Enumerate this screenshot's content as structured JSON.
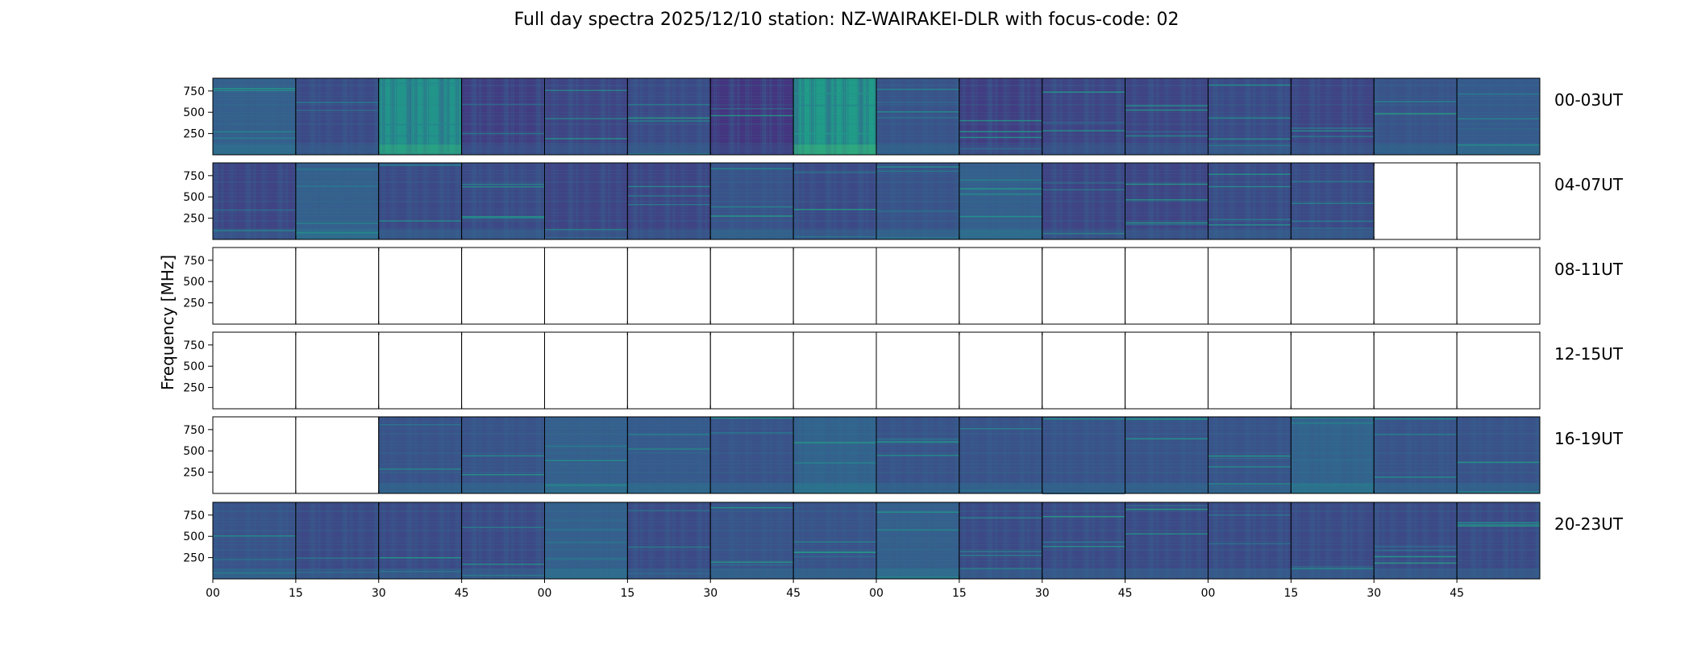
{
  "title": "Full day spectra 2025/12/10 station: NZ-WAIRAKEI-DLR with focus-code: 02",
  "colors": {
    "panel_empty": "#ffffff",
    "colormap": [
      "#440154",
      "#46327e",
      "#365c8d",
      "#277f8e",
      "#1fa187",
      "#4ac16d",
      "#a0da39",
      "#fde725"
    ]
  },
  "chart_data": {
    "type": "heatmap",
    "title": "Full day spectra 2025/12/10 station: NZ-WAIRAKEI-DLR with focus-code: 02",
    "ylabel": "Frequency [MHz]",
    "xlabel": "",
    "ylim": [
      0,
      900
    ],
    "yticks": [
      250,
      500,
      750
    ],
    "x_tick_labels": [
      "00",
      "15",
      "30",
      "45",
      "00",
      "15",
      "30",
      "45",
      "00",
      "15",
      "30",
      "45",
      "00",
      "15",
      "30",
      "45"
    ],
    "grid": false,
    "panels_per_row": 16,
    "rows": [
      {
        "label": "00-03UT",
        "available": [
          1,
          1,
          1,
          1,
          1,
          1,
          1,
          1,
          1,
          1,
          1,
          1,
          1,
          1,
          1,
          1
        ],
        "intensity": [
          0.3,
          0.22,
          0.52,
          0.18,
          0.2,
          0.22,
          0.15,
          0.55,
          0.25,
          0.18,
          0.2,
          0.2,
          0.22,
          0.2,
          0.25,
          0.28
        ]
      },
      {
        "label": "04-07UT",
        "available": [
          1,
          1,
          1,
          1,
          1,
          1,
          1,
          1,
          1,
          1,
          1,
          1,
          1,
          1,
          0,
          0
        ],
        "intensity": [
          0.2,
          0.3,
          0.22,
          0.22,
          0.2,
          0.2,
          0.25,
          0.22,
          0.25,
          0.3,
          0.2,
          0.2,
          0.22,
          0.22,
          0,
          0
        ]
      },
      {
        "label": "08-11UT",
        "available": [
          0,
          0,
          0,
          0,
          0,
          0,
          0,
          0,
          0,
          0,
          0,
          0,
          0,
          0,
          0,
          0
        ],
        "intensity": [
          0,
          0,
          0,
          0,
          0,
          0,
          0,
          0,
          0,
          0,
          0,
          0,
          0,
          0,
          0,
          0
        ]
      },
      {
        "label": "12-15UT",
        "available": [
          0,
          0,
          0,
          0,
          0,
          0,
          0,
          0,
          0,
          0,
          0,
          0,
          0,
          0,
          0,
          0
        ],
        "intensity": [
          0,
          0,
          0,
          0,
          0,
          0,
          0,
          0,
          0,
          0,
          0,
          0,
          0,
          0,
          0,
          0
        ]
      },
      {
        "label": "16-19UT",
        "available": [
          0,
          0,
          1,
          1,
          1,
          1,
          1,
          1,
          1,
          1,
          1,
          1,
          1,
          1,
          1,
          1
        ],
        "intensity": [
          0,
          0,
          0.25,
          0.25,
          0.3,
          0.28,
          0.25,
          0.32,
          0.25,
          0.25,
          0.25,
          0.25,
          0.25,
          0.32,
          0.25,
          0.25
        ]
      },
      {
        "label": "20-23UT",
        "available": [
          1,
          1,
          1,
          1,
          1,
          1,
          1,
          1,
          1,
          1,
          1,
          1,
          1,
          1,
          1,
          1
        ],
        "intensity": [
          0.25,
          0.22,
          0.22,
          0.22,
          0.3,
          0.22,
          0.25,
          0.25,
          0.3,
          0.22,
          0.22,
          0.22,
          0.22,
          0.22,
          0.22,
          0.22
        ]
      }
    ]
  }
}
